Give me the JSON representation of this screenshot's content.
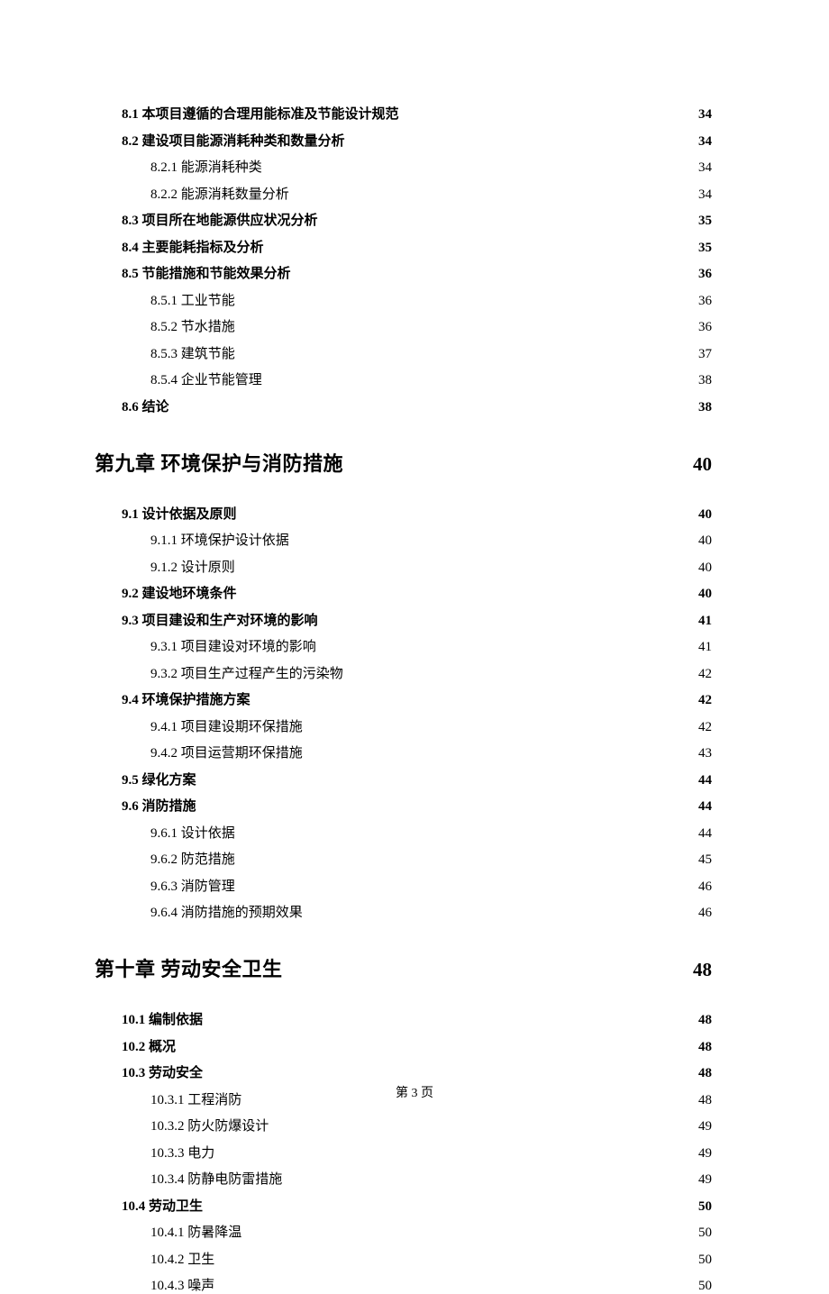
{
  "page_footer": "第 3 页",
  "colors": {
    "text": "#000000",
    "background": "#ffffff"
  },
  "toc_entries": [
    {
      "level": 2,
      "label": "8.1 本项目遵循的合理用能标准及节能设计规范",
      "page": "34"
    },
    {
      "level": 2,
      "label": "8.2 建设项目能源消耗种类和数量分析",
      "page": "34"
    },
    {
      "level": 3,
      "label": "8.2.1 能源消耗种类",
      "page": "34"
    },
    {
      "level": 3,
      "label": "8.2.2 能源消耗数量分析",
      "page": "34"
    },
    {
      "level": 2,
      "label": "8.3 项目所在地能源供应状况分析",
      "page": "35"
    },
    {
      "level": 2,
      "label": "8.4 主要能耗指标及分析",
      "page": "35"
    },
    {
      "level": 2,
      "label": "8.5 节能措施和节能效果分析",
      "page": "36"
    },
    {
      "level": 3,
      "label": "8.5.1 工业节能",
      "page": "36"
    },
    {
      "level": 3,
      "label": "8.5.2 节水措施",
      "page": "36"
    },
    {
      "level": 3,
      "label": "8.5.3 建筑节能",
      "page": "37"
    },
    {
      "level": 3,
      "label": "8.5.4 企业节能管理",
      "page": "38"
    },
    {
      "level": 2,
      "label": "8.6 结论",
      "page": "38"
    },
    {
      "level": 1,
      "label": "第九章 环境保护与消防措施",
      "page": "40"
    },
    {
      "level": 2,
      "label": "9.1 设计依据及原则",
      "page": "40"
    },
    {
      "level": 3,
      "label": "9.1.1 环境保护设计依据",
      "page": "40"
    },
    {
      "level": 3,
      "label": "9.1.2 设计原则",
      "page": "40"
    },
    {
      "level": 2,
      "label": "9.2 建设地环境条件",
      "page": "40"
    },
    {
      "level": 2,
      "label": "9.3  项目建设和生产对环境的影响",
      "page": "41"
    },
    {
      "level": 3,
      "label": "9.3.1  项目建设对环境的影响",
      "page": "41"
    },
    {
      "level": 3,
      "label": "9.3.2 项目生产过程产生的污染物",
      "page": "42"
    },
    {
      "level": 2,
      "label": "9.4  环境保护措施方案",
      "page": "42"
    },
    {
      "level": 3,
      "label": "9.4.1  项目建设期环保措施",
      "page": "42"
    },
    {
      "level": 3,
      "label": "9.4.2  项目运营期环保措施",
      "page": "43"
    },
    {
      "level": 2,
      "label": "9.5 绿化方案",
      "page": "44"
    },
    {
      "level": 2,
      "label": "9.6 消防措施",
      "page": "44"
    },
    {
      "level": 3,
      "label": "9.6.1 设计依据",
      "page": "44"
    },
    {
      "level": 3,
      "label": "9.6.2 防范措施",
      "page": "45"
    },
    {
      "level": 3,
      "label": "9.6.3 消防管理",
      "page": "46"
    },
    {
      "level": 3,
      "label": "9.6.4 消防措施的预期效果",
      "page": "46"
    },
    {
      "level": 1,
      "label": "第十章 劳动安全卫生",
      "page": "48"
    },
    {
      "level": 2,
      "label": "10.1  编制依据",
      "page": "48"
    },
    {
      "level": 2,
      "label": "10.2 概况",
      "page": "48"
    },
    {
      "level": 2,
      "label": "10.3  劳动安全",
      "page": "48"
    },
    {
      "level": 3,
      "label": "10.3.1 工程消防",
      "page": "48"
    },
    {
      "level": 3,
      "label": "10.3.2 防火防爆设计",
      "page": "49"
    },
    {
      "level": 3,
      "label": "10.3.3 电力",
      "page": "49"
    },
    {
      "level": 3,
      "label": "10.3.4 防静电防雷措施",
      "page": "49"
    },
    {
      "level": 2,
      "label": "10.4 劳动卫生",
      "page": "50"
    },
    {
      "level": 3,
      "label": "10.4.1 防暑降温",
      "page": "50"
    },
    {
      "level": 3,
      "label": "10.4.2 卫生",
      "page": "50"
    },
    {
      "level": 3,
      "label": "10.4.3 噪声",
      "page": "50"
    }
  ]
}
